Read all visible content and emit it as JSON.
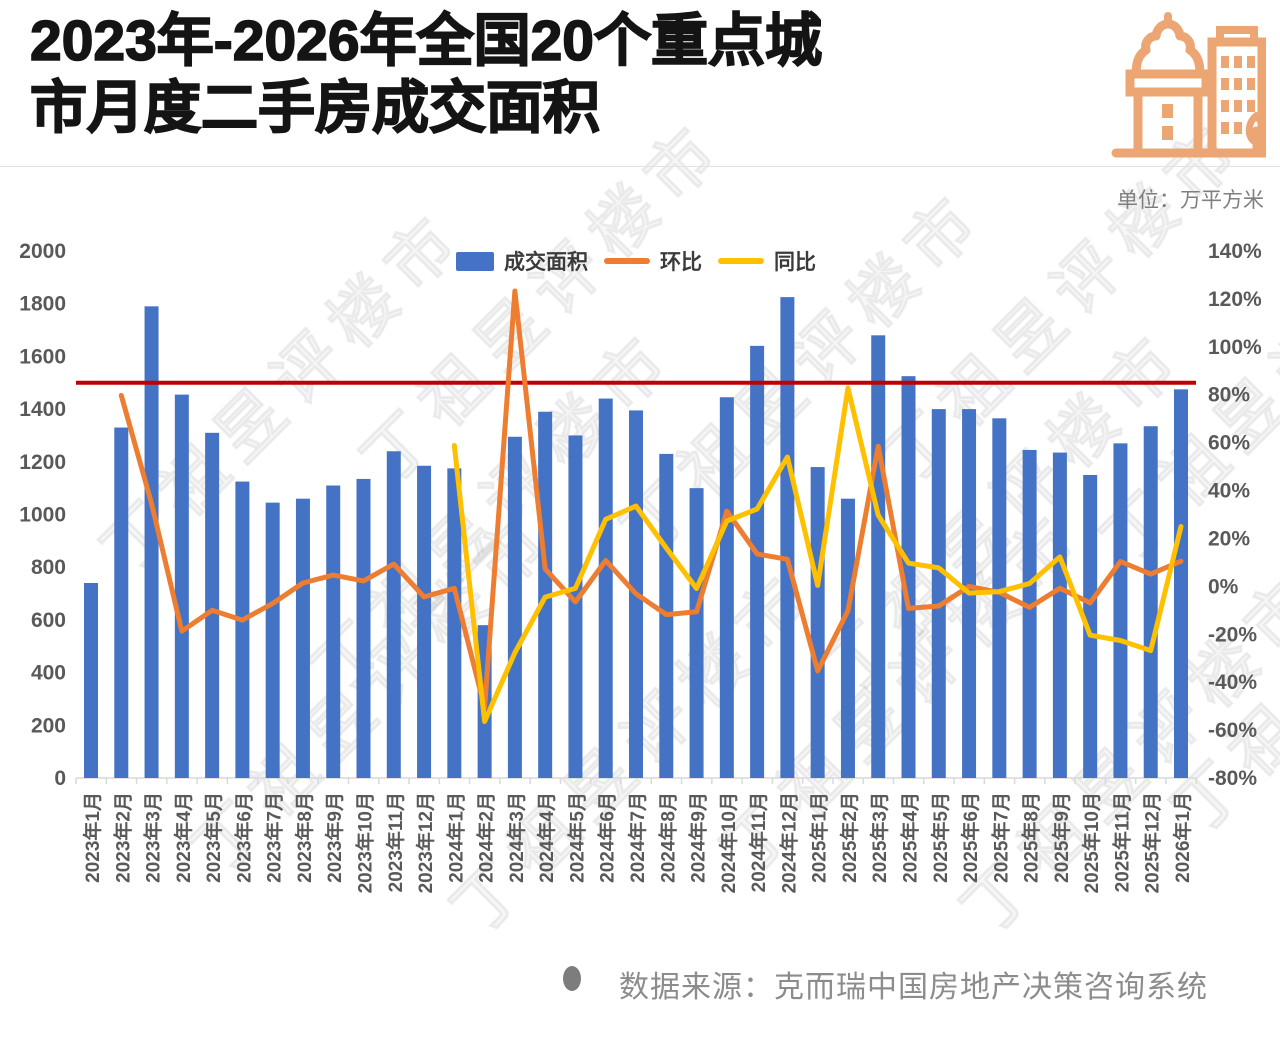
{
  "header": {
    "title_line1": "2023年-2026年全国20个重点城",
    "title_line2": "市月度二手房成交面积",
    "unit_label": "单位：万平方米"
  },
  "legend": {
    "items": [
      {
        "label": "成交面积",
        "type": "bar",
        "color": "#4472C4"
      },
      {
        "label": "环比",
        "type": "line",
        "color": "#ED7D31"
      },
      {
        "label": "同比",
        "type": "line",
        "color": "#FFC000"
      }
    ]
  },
  "watermark": {
    "text": "丁祖昱评楼市"
  },
  "footer": {
    "source": "数据来源：克而瑞中国房地产决策咨询系统"
  },
  "colors": {
    "bar": "#4472C4",
    "mom_line": "#ED7D31",
    "yoy_line": "#FFC000",
    "reference_line": "#C00000",
    "axis_text": "#595959",
    "axis_line": "#d9d9d9",
    "icon": "#ECA673"
  },
  "chart_data": {
    "type": "bar",
    "title": "2023年-2026年全国20个重点城市月度二手房成交面积",
    "unit": "万平方米",
    "legend_position": "top",
    "grid": false,
    "categories": [
      "2023年1月",
      "2023年2月",
      "2023年3月",
      "2023年4月",
      "2023年5月",
      "2023年6月",
      "2023年7月",
      "2023年8月",
      "2023年9月",
      "2023年10月",
      "2023年11月",
      "2023年12月",
      "2024年1月",
      "2024年2月",
      "2024年3月",
      "2024年4月",
      "2024年5月",
      "2024年6月",
      "2024年7月",
      "2024年8月",
      "2024年9月",
      "2024年10月",
      "2024年11月",
      "2024年12月",
      "2025年1月",
      "2025年2月",
      "2025年3月",
      "2025年4月",
      "2025年5月",
      "2025年6月",
      "2025年7月",
      "2025年8月",
      "2025年9月",
      "2025年10月",
      "2025年11月",
      "2025年12月",
      "2026年1月"
    ],
    "series": [
      {
        "name": "成交面积",
        "type": "bar",
        "axis": "left",
        "color": "#4472C4",
        "values": [
          740,
          1330,
          1790,
          1455,
          1310,
          1125,
          1045,
          1060,
          1110,
          1135,
          1240,
          1185,
          1175,
          580,
          1295,
          1390,
          1300,
          1440,
          1395,
          1230,
          1100,
          1445,
          1640,
          1825,
          1180,
          1060,
          1680,
          1525,
          1400,
          1400,
          1365,
          1245,
          1235,
          1150,
          1270,
          1335,
          1475
        ]
      },
      {
        "name": "环比",
        "type": "line",
        "axis": "right",
        "color": "#ED7D31",
        "values": [
          null,
          79.7,
          34.6,
          -18.7,
          -10.0,
          -14.1,
          -7.1,
          1.4,
          4.7,
          2.3,
          9.3,
          -4.4,
          -0.8,
          -50.6,
          123.3,
          7.3,
          -6.5,
          10.8,
          -3.1,
          -11.8,
          -10.6,
          31.4,
          13.5,
          11.3,
          -35.3,
          -10.2,
          58.5,
          -9.2,
          -8.2,
          0.0,
          -2.5,
          -8.8,
          -0.8,
          -6.9,
          10.4,
          5.1,
          10.5
        ]
      },
      {
        "name": "同比",
        "type": "line",
        "axis": "right",
        "color": "#FFC000",
        "values": [
          null,
          null,
          null,
          null,
          null,
          null,
          null,
          null,
          null,
          null,
          null,
          null,
          58.8,
          -56.4,
          -27.7,
          -4.5,
          -0.8,
          28.0,
          33.5,
          16.0,
          -0.9,
          27.3,
          32.3,
          54.0,
          0.4,
          82.8,
          29.7,
          9.7,
          7.7,
          -2.8,
          -2.2,
          1.2,
          12.3,
          -20.4,
          -22.6,
          -26.8,
          25.0
        ]
      }
    ],
    "left_axis": {
      "min": 0,
      "max": 2000,
      "step": 200,
      "suffix": ""
    },
    "right_axis": {
      "min": -80,
      "max": 140,
      "step": 20,
      "suffix": "%"
    },
    "reference_line": {
      "axis": "left",
      "value": 1500,
      "color": "#C00000"
    }
  }
}
